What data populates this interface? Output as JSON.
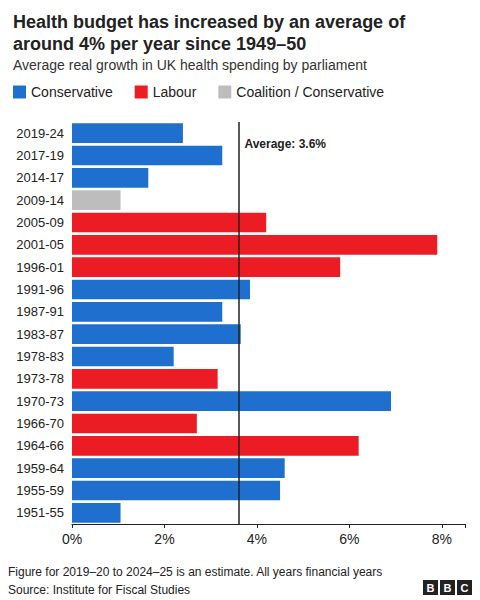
{
  "chart_data": {
    "type": "bar",
    "orientation": "horizontal",
    "title": "Health budget has increased by an average of around 4% per year since 1949–50",
    "subtitle": "Average real growth in UK health spending by parliament",
    "categories": [
      "2019-24",
      "2017-19",
      "2014-17",
      "2009-14",
      "2005-09",
      "2001-05",
      "1996-01",
      "1991-96",
      "1987-91",
      "1983-87",
      "1978-83",
      "1973-78",
      "1970-73",
      "1966-70",
      "1964-66",
      "1959-64",
      "1955-59",
      "1951-55"
    ],
    "series": [
      {
        "name": "Conservative",
        "color": "#1f6fcf",
        "values": [
          2.4,
          3.25,
          1.65,
          null,
          null,
          null,
          null,
          3.85,
          3.25,
          3.65,
          2.2,
          null,
          6.9,
          null,
          null,
          4.6,
          4.5,
          1.05
        ]
      },
      {
        "name": "Labour",
        "color": "#eb1c24",
        "values": [
          null,
          null,
          null,
          null,
          4.2,
          7.9,
          5.8,
          null,
          null,
          null,
          null,
          3.15,
          null,
          2.7,
          6.2,
          null,
          null,
          null
        ]
      },
      {
        "name": "Coalition / Conservative",
        "color": "#bdbdbd",
        "values": [
          null,
          null,
          null,
          1.05,
          null,
          null,
          null,
          null,
          null,
          null,
          null,
          null,
          null,
          null,
          null,
          null,
          null,
          null
        ]
      }
    ],
    "average": {
      "value": 3.6,
      "label": "Average: 3.6%"
    },
    "xlim": [
      0,
      8.5
    ],
    "xticks": [
      {
        "value": 0,
        "label": "0%"
      },
      {
        "value": 2,
        "label": "2%"
      },
      {
        "value": 4,
        "label": "4%"
      },
      {
        "value": 6,
        "label": "6%"
      },
      {
        "value": 8,
        "label": "8%"
      }
    ],
    "grid": false,
    "legend": "top",
    "note": "Figure for 2019–20 to 2024–25 is an estimate. All years financial years",
    "source": "Source: Institute for Fiscal Studies",
    "logo": "BBC"
  }
}
